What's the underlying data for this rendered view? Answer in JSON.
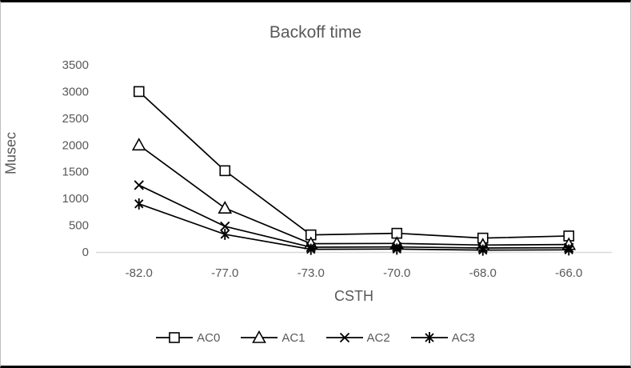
{
  "page": {
    "background": "#ffffff",
    "frame_border_top_bottom": "#000000",
    "frame_border_sides": "#bfbfbf"
  },
  "chart_data": {
    "type": "line",
    "title": "Backoff time",
    "xlabel": "CSTH",
    "ylabel": "Musec",
    "categories": [
      "-82.0",
      "-77.0",
      "-73.0",
      "-70.0",
      "-68.0",
      "-66.0"
    ],
    "yticks": [
      0,
      500,
      1000,
      1500,
      2000,
      2500,
      3000,
      3500
    ],
    "ylim": [
      0,
      3500
    ],
    "grid": false,
    "legend_position": "bottom",
    "text_color": "#595959",
    "axis_line_color": "#d9d9d9",
    "series_color": "#000000",
    "series": [
      {
        "name": "AC0",
        "marker": "square",
        "values": [
          3000,
          1520,
          320,
          350,
          260,
          300
        ]
      },
      {
        "name": "AC1",
        "marker": "triangle",
        "values": [
          2000,
          820,
          155,
          160,
          130,
          140
        ]
      },
      {
        "name": "AC2",
        "marker": "x",
        "values": [
          1250,
          480,
          90,
          95,
          75,
          80
        ]
      },
      {
        "name": "AC3",
        "marker": "asterisk",
        "values": [
          900,
          330,
          50,
          55,
          35,
          40
        ]
      }
    ]
  }
}
